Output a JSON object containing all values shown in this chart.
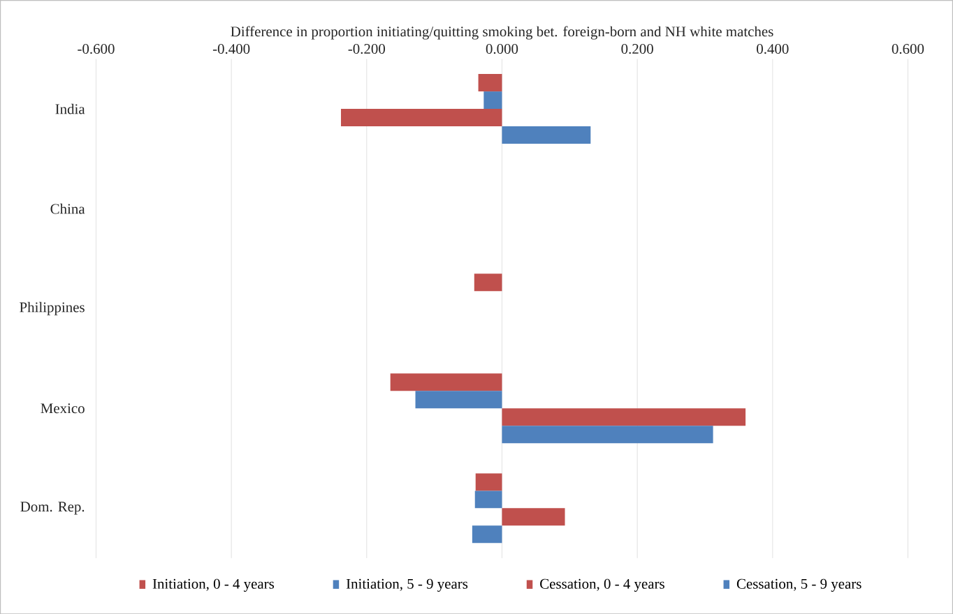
{
  "chart_data": {
    "type": "bar",
    "orientation": "horizontal",
    "xlabel": "Difference in proportion initiating/quitting  smoking bet. foreign-born and NH white matches",
    "categories": [
      "India",
      "China",
      "Philippines",
      "Mexico",
      "Dom. Rep."
    ],
    "series": [
      {
        "name": "Initiation, 0 - 4 years",
        "color": "#c0504d",
        "values": [
          -0.035,
          null,
          -0.041,
          -0.165,
          -0.039
        ]
      },
      {
        "name": "Initiation, 5 - 9 years",
        "color": "#4f81bd",
        "values": [
          -0.027,
          null,
          null,
          -0.128,
          -0.04
        ]
      },
      {
        "name": "Cessation, 0 - 4 years",
        "color": "#c0504d",
        "values": [
          -0.238,
          null,
          null,
          0.36,
          0.093
        ]
      },
      {
        "name": "Cessation, 5 - 9 years",
        "color": "#4f81bd",
        "values": [
          0.131,
          null,
          null,
          0.312,
          -0.044
        ]
      }
    ],
    "xlim": [
      -0.6,
      0.6
    ],
    "xticks": [
      {
        "value": -0.6,
        "label": "-0.600"
      },
      {
        "value": -0.4,
        "label": "-0.400"
      },
      {
        "value": -0.2,
        "label": "-0.200"
      },
      {
        "value": 0,
        "label": "0.000"
      },
      {
        "value": 0.2,
        "label": "0.200"
      },
      {
        "value": 0.4,
        "label": "0.400"
      },
      {
        "value": 0.6,
        "label": "0.600"
      }
    ],
    "grid": "x",
    "legend": "bottom"
  }
}
